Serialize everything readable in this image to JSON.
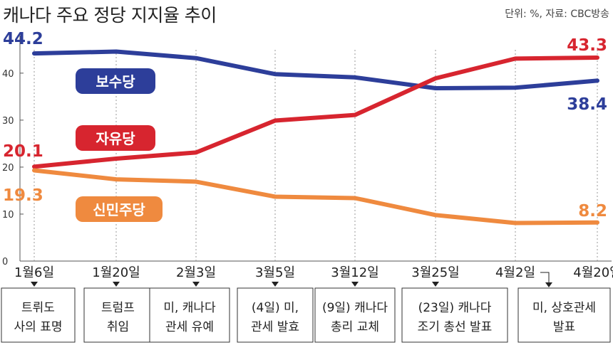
{
  "chart_data": {
    "type": "line",
    "title": "캐나다 주요 정당 지지율 추이",
    "source": "단위: %, 자료: CBC방송",
    "categories": [
      "1월6일",
      "1월20일",
      "2월3일",
      "3월5일",
      "3월12일",
      "3월25일",
      "4월2일",
      "4월20일"
    ],
    "ylim": [
      0,
      48
    ],
    "yticks": [
      0,
      10,
      20,
      30,
      40
    ],
    "grid": false,
    "series": [
      {
        "name": "보수당",
        "color": "#2d3e9a",
        "values": [
          44.2,
          44.6,
          43.2,
          39.8,
          39.1,
          36.8,
          36.9,
          38.4
        ],
        "start_label": "44.2",
        "end_label": "38.4"
      },
      {
        "name": "자유당",
        "color": "#d7252f",
        "values": [
          20.1,
          21.8,
          23.1,
          29.9,
          31.1,
          38.9,
          43.1,
          43.3
        ],
        "start_label": "20.1",
        "end_label": "43.3"
      },
      {
        "name": "신민주당",
        "color": "#ef8a3f",
        "values": [
          19.3,
          17.4,
          16.9,
          13.7,
          13.4,
          9.8,
          8.1,
          8.2
        ],
        "start_label": "19.3",
        "end_label": "8.2"
      }
    ],
    "events": [
      {
        "lines": [
          "트뤼도",
          "사의 표명"
        ]
      },
      {
        "lines": [
          "트럼프",
          "취임"
        ]
      },
      {
        "lines": [
          "미, 캐나다",
          "관세 유예"
        ]
      },
      {
        "lines": [
          "(4일) 미,",
          "관세 발효"
        ]
      },
      {
        "lines": [
          "(9일) 캐나다",
          "총리 교체"
        ]
      },
      {
        "lines": [
          "(23일) 캐나다",
          "조기 총선 발표"
        ]
      },
      {
        "lines": [
          "미, 상호관세",
          "발표"
        ]
      }
    ]
  }
}
